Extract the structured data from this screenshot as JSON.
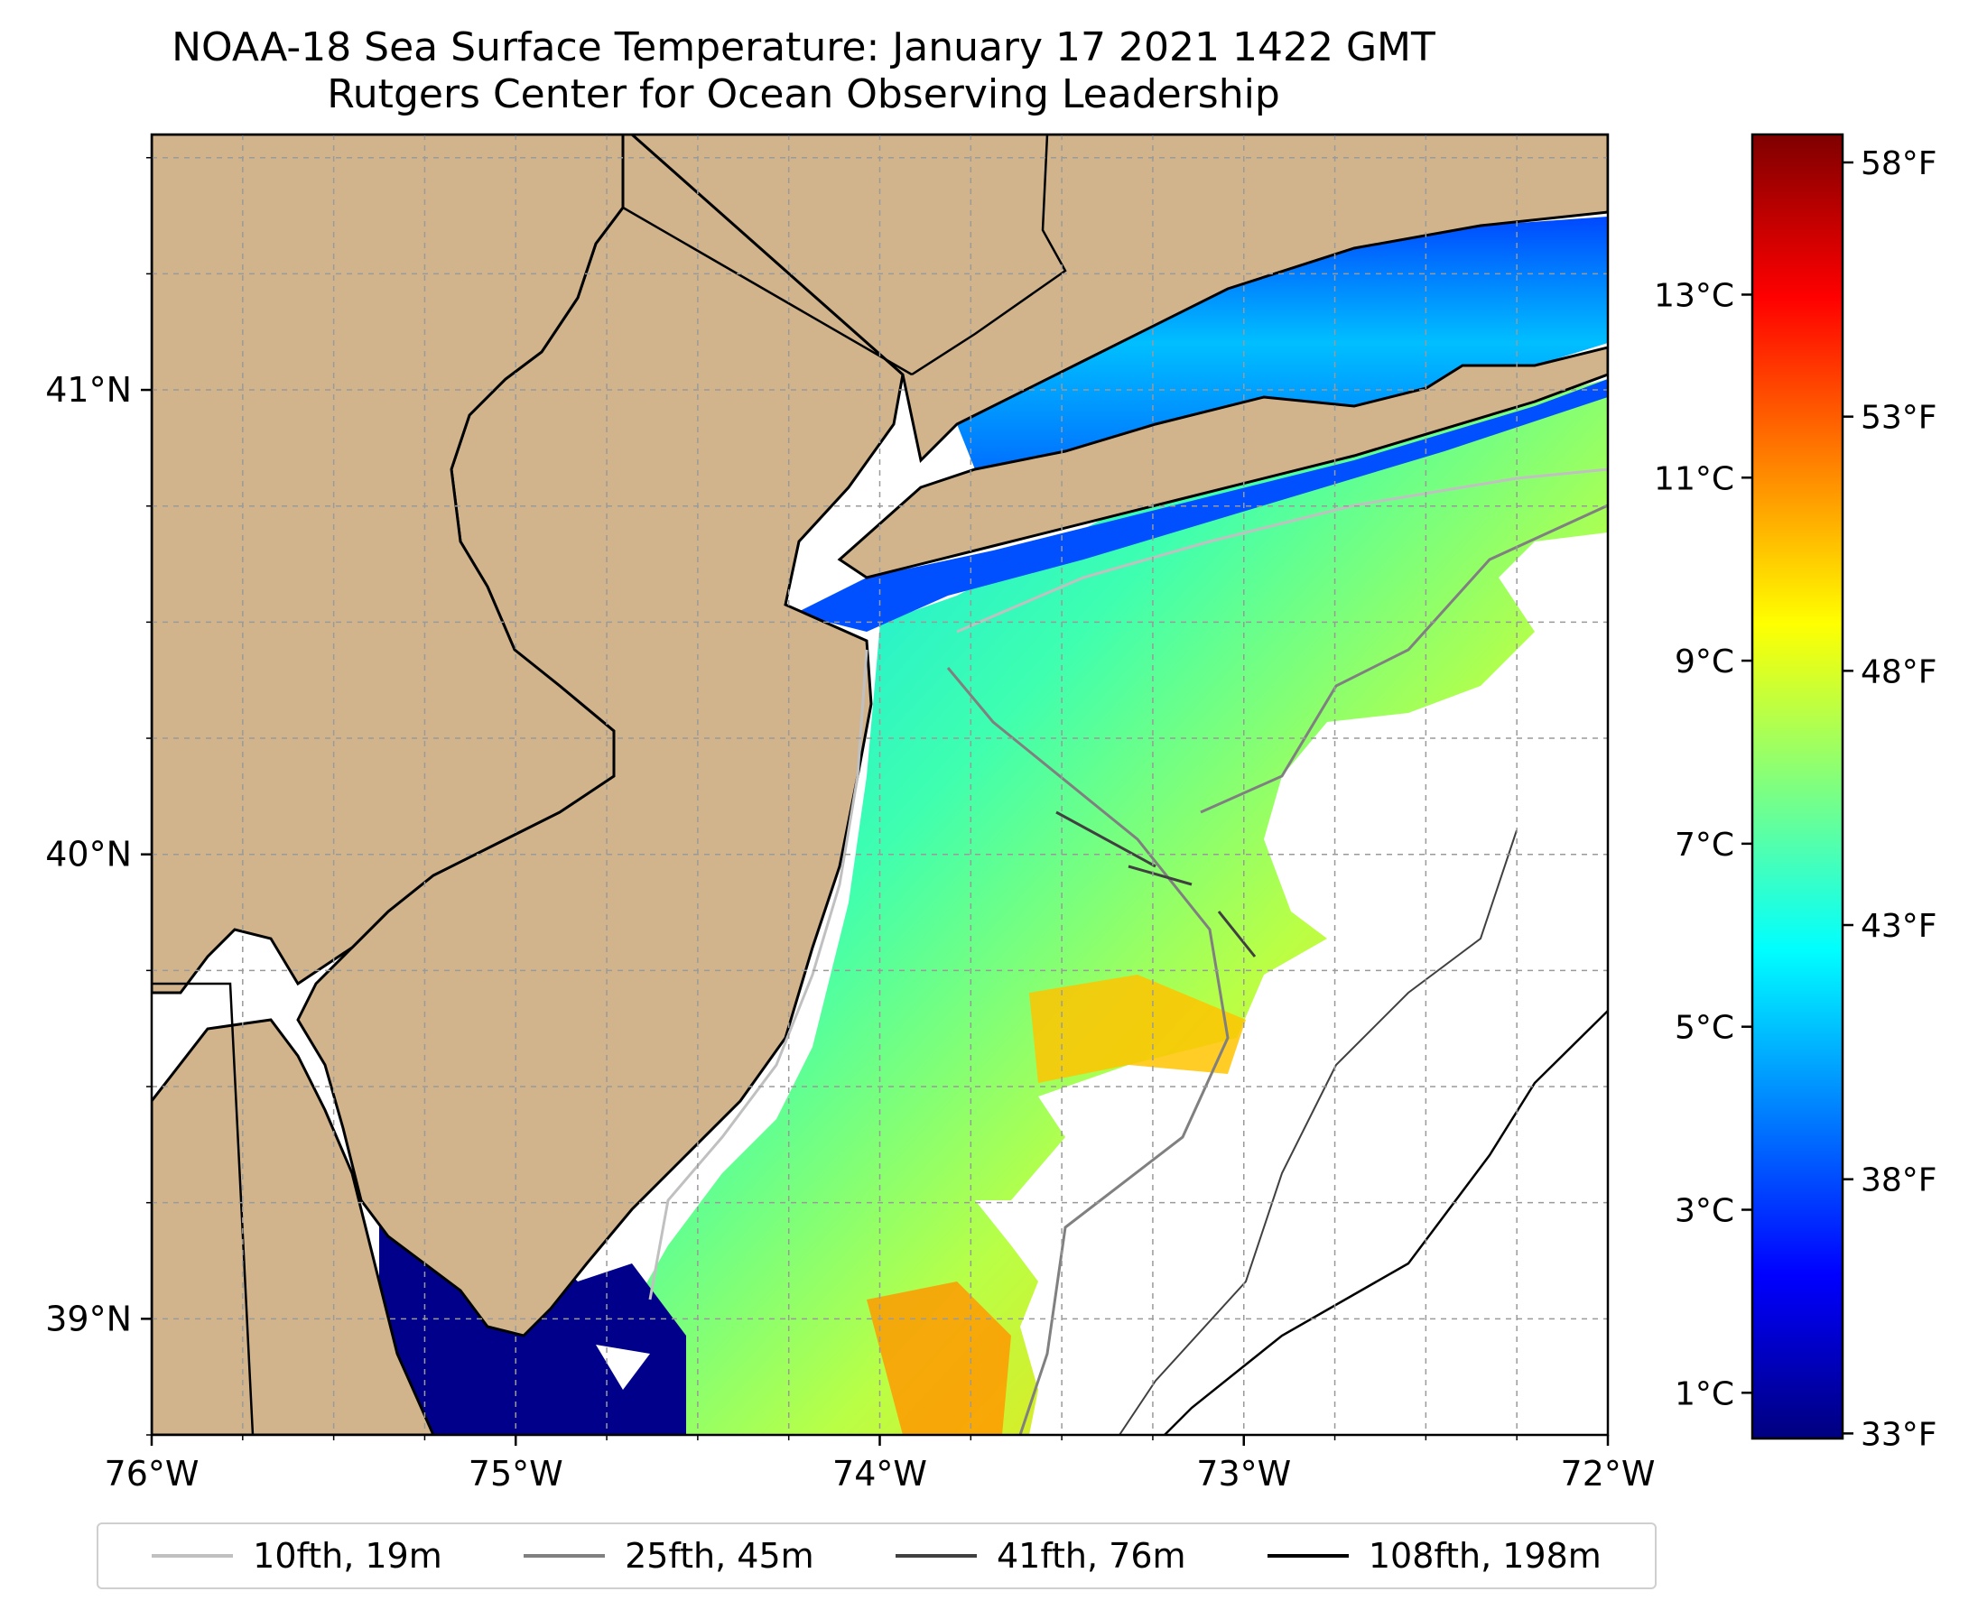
{
  "title": "NOAA-18 Sea Surface Temperature: January 17 2021 1422 GMT",
  "subtitle": "Rutgers Center for Ocean Observing Leadership",
  "map": {
    "lon_range": [
      -76,
      -72
    ],
    "lat_range": [
      38.75,
      41.55
    ],
    "lon_ticks": [
      "76°W",
      "75°W",
      "74°W",
      "73°W",
      "72°W"
    ],
    "lat_ticks": [
      "41°N",
      "40°N",
      "39°N"
    ],
    "land_color": "#d2b48c",
    "no_data_color": "#ffffff",
    "gridlines": true
  },
  "colorbar": {
    "colormap": "jet",
    "celsius_ticks": [
      "1°C",
      "3°C",
      "5°C",
      "7°C",
      "9°C",
      "11°C",
      "13°C"
    ],
    "fahrenheit_ticks": [
      "33°F",
      "38°F",
      "43°F",
      "48°F",
      "53°F",
      "58°F"
    ]
  },
  "legend": {
    "items": [
      {
        "label": "10fth, 19m",
        "color": "#c0c0c0"
      },
      {
        "label": "25fth, 45m",
        "color": "#808080"
      },
      {
        "label": "41fth, 76m",
        "color": "#404040"
      },
      {
        "label": "108fth, 198m",
        "color": "#000000"
      }
    ]
  }
}
